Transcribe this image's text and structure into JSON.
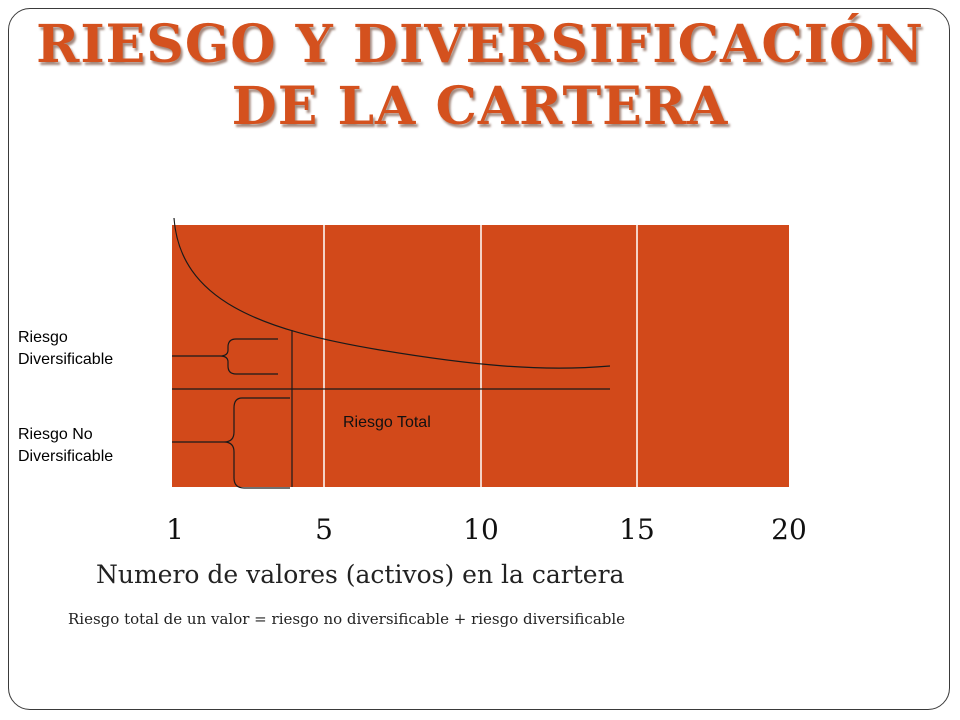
{
  "slide": {
    "title_line1": "RIESGO Y DIVERSIFICACIÓN",
    "title_line2": "DE LA CARTERA",
    "caption": "Riesgo total de un valor = riesgo no diversificable + riesgo diversificable"
  },
  "chart_data": {
    "type": "line",
    "title": "",
    "xlabel": "Numero de valores (activos) en la cartera",
    "ylabel": "",
    "x_ticks": [
      "1",
      "5",
      "10",
      "15",
      "20"
    ],
    "annotations": {
      "diversifiable": "Riesgo Diversificable",
      "diversifiable_line1": "Riesgo",
      "diversifiable_line2": "Diversificable",
      "non_diversifiable_line1": "Riesgo No",
      "non_diversifiable_line2": "Diversificable",
      "total": "Riesgo Total"
    },
    "colors": {
      "plot_fill": "#d2491a",
      "gridline": "#ffffff",
      "curve": "#1a1a1a",
      "title": "#d4511e"
    }
  }
}
